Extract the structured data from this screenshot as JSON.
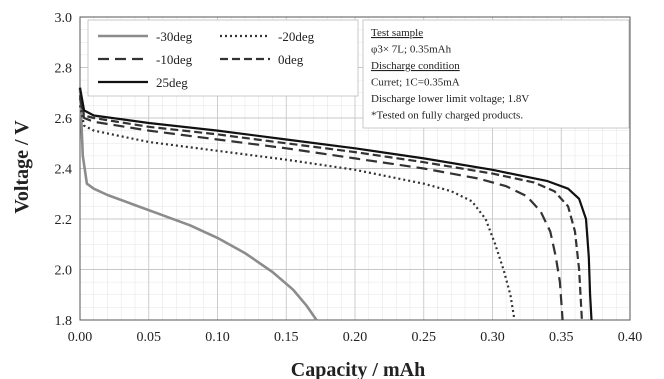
{
  "chart_data": {
    "type": "line",
    "xlabel": "Capacity / mAh",
    "ylabel": "Voltage / V",
    "xlim": [
      0,
      0.4
    ],
    "ylim": [
      1.8,
      3.0
    ],
    "xticks": [
      "0.00",
      "0.05",
      "0.10",
      "0.15",
      "0.20",
      "0.25",
      "0.30",
      "0.35",
      "0.40"
    ],
    "yticks": [
      "1.8",
      "2.0",
      "2.2",
      "2.4",
      "2.6",
      "2.8",
      "3.0"
    ],
    "grid": true,
    "legend_position": "top-left",
    "annotation": [
      {
        "text": "Test sample",
        "underline": true
      },
      {
        "text": "φ3× 7L; 0.35mAh",
        "underline": false
      },
      {
        "text": "Discharge condition",
        "underline": true
      },
      {
        "text": "Curret; 1C=0.35mA",
        "underline": false
      },
      {
        "text": "Discharge lower limit voltage; 1.8V",
        "underline": false
      },
      {
        "text": "*Tested on fully charged products.",
        "underline": false
      }
    ],
    "series": [
      {
        "name": "-30deg",
        "color": "#8c8c8c",
        "dash": "solid",
        "points": [
          [
            0,
            2.72
          ],
          [
            0.002,
            2.45
          ],
          [
            0.005,
            2.34
          ],
          [
            0.01,
            2.32
          ],
          [
            0.02,
            2.295
          ],
          [
            0.04,
            2.255
          ],
          [
            0.06,
            2.215
          ],
          [
            0.08,
            2.175
          ],
          [
            0.1,
            2.125
          ],
          [
            0.12,
            2.065
          ],
          [
            0.14,
            1.99
          ],
          [
            0.155,
            1.92
          ],
          [
            0.165,
            1.855
          ],
          [
            0.172,
            1.8
          ]
        ]
      },
      {
        "name": "-20deg",
        "color": "#333333",
        "dash": "dotted",
        "points": [
          [
            0,
            2.65
          ],
          [
            0.003,
            2.57
          ],
          [
            0.01,
            2.55
          ],
          [
            0.05,
            2.505
          ],
          [
            0.1,
            2.47
          ],
          [
            0.15,
            2.435
          ],
          [
            0.2,
            2.395
          ],
          [
            0.25,
            2.34
          ],
          [
            0.27,
            2.31
          ],
          [
            0.285,
            2.27
          ],
          [
            0.295,
            2.2
          ],
          [
            0.302,
            2.1
          ],
          [
            0.308,
            2.0
          ],
          [
            0.313,
            1.9
          ],
          [
            0.316,
            1.8
          ]
        ]
      },
      {
        "name": "-10deg",
        "color": "#333333",
        "dash": "long-dash",
        "points": [
          [
            0,
            2.68
          ],
          [
            0.003,
            2.6
          ],
          [
            0.01,
            2.585
          ],
          [
            0.05,
            2.55
          ],
          [
            0.1,
            2.515
          ],
          [
            0.15,
            2.48
          ],
          [
            0.2,
            2.44
          ],
          [
            0.25,
            2.4
          ],
          [
            0.29,
            2.36
          ],
          [
            0.31,
            2.33
          ],
          [
            0.325,
            2.29
          ],
          [
            0.335,
            2.23
          ],
          [
            0.342,
            2.15
          ],
          [
            0.346,
            2.05
          ],
          [
            0.349,
            1.95
          ],
          [
            0.351,
            1.8
          ]
        ]
      },
      {
        "name": "0deg",
        "color": "#333333",
        "dash": "dash",
        "points": [
          [
            0,
            2.69
          ],
          [
            0.003,
            2.61
          ],
          [
            0.01,
            2.6
          ],
          [
            0.05,
            2.565
          ],
          [
            0.1,
            2.535
          ],
          [
            0.15,
            2.5
          ],
          [
            0.2,
            2.465
          ],
          [
            0.25,
            2.425
          ],
          [
            0.3,
            2.38
          ],
          [
            0.33,
            2.345
          ],
          [
            0.345,
            2.31
          ],
          [
            0.355,
            2.25
          ],
          [
            0.36,
            2.15
          ],
          [
            0.363,
            2.0
          ],
          [
            0.365,
            1.8
          ]
        ]
      },
      {
        "name": "25deg",
        "color": "#111111",
        "dash": "solid",
        "points": [
          [
            0,
            2.72
          ],
          [
            0.003,
            2.63
          ],
          [
            0.01,
            2.61
          ],
          [
            0.05,
            2.58
          ],
          [
            0.1,
            2.55
          ],
          [
            0.15,
            2.515
          ],
          [
            0.2,
            2.48
          ],
          [
            0.25,
            2.44
          ],
          [
            0.3,
            2.395
          ],
          [
            0.34,
            2.35
          ],
          [
            0.355,
            2.32
          ],
          [
            0.363,
            2.28
          ],
          [
            0.368,
            2.2
          ],
          [
            0.37,
            2.05
          ],
          [
            0.371,
            1.9
          ],
          [
            0.372,
            1.8
          ]
        ]
      }
    ]
  }
}
